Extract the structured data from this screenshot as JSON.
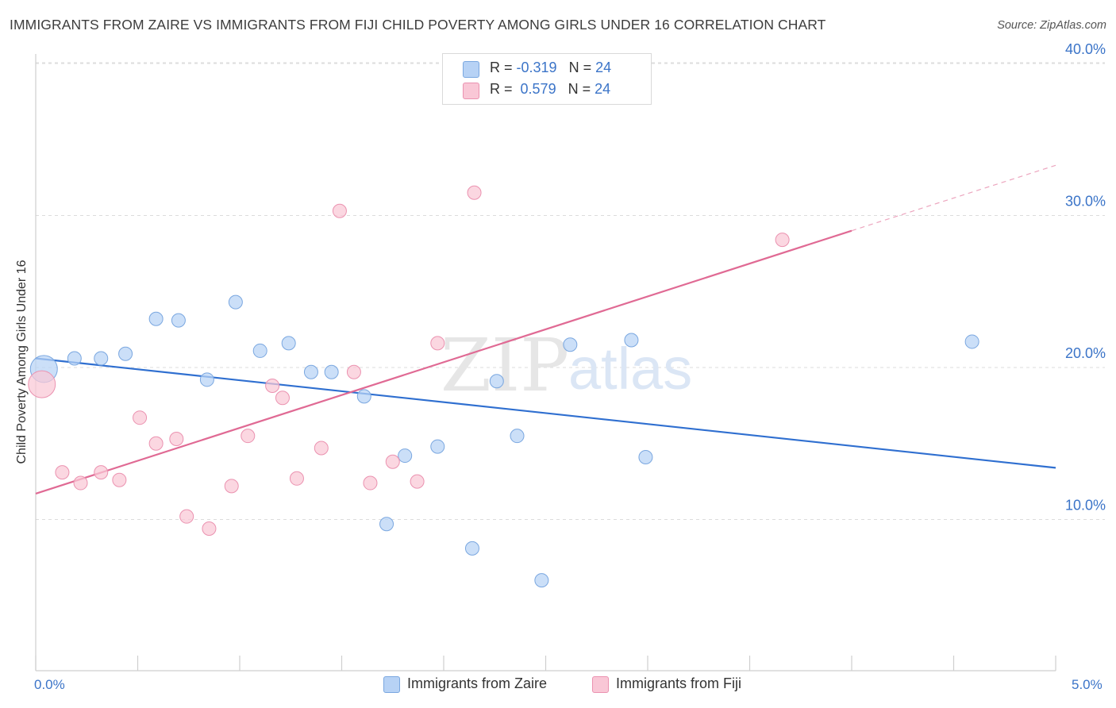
{
  "title": "IMMIGRANTS FROM ZAIRE VS IMMIGRANTS FROM FIJI CHILD POVERTY AMONG GIRLS UNDER 16 CORRELATION CHART",
  "source": "Source: ZipAtlas.com",
  "watermark": {
    "zip": "ZIP",
    "atlas": "atlas"
  },
  "legend_top": {
    "zaire": {
      "r_label": "R =",
      "r_value": "-0.319",
      "n_label": "N =",
      "n_value": "24"
    },
    "fiji": {
      "r_label": "R =",
      "r_value": "0.579",
      "n_label": "N =",
      "n_value": "24"
    }
  },
  "legend_bottom": {
    "zaire": "Immigrants from Zaire",
    "fiji": "Immigrants from Fiji"
  },
  "colors": {
    "zaire_fill": "#b7d2f5",
    "zaire_stroke": "#7aa7e0",
    "zaire_line": "#2f6fd0",
    "fiji_fill": "#f9c7d6",
    "fiji_stroke": "#eb92b0",
    "fiji_line": "#e06a94",
    "tick_text": "#3b74c8",
    "grid": "#dcdcdc"
  },
  "chart_data": {
    "type": "scatter",
    "title": "IMMIGRANTS FROM ZAIRE VS IMMIGRANTS FROM FIJI CHILD POVERTY AMONG GIRLS UNDER 16 CORRELATION CHART",
    "xlabel": "",
    "ylabel": "Child Poverty Among Girls Under 16",
    "xlim": [
      0,
      5
    ],
    "ylim": [
      0,
      42
    ],
    "x_tick_labels": [
      "0.0%",
      "5.0%"
    ],
    "y_ticks": [
      10,
      20,
      30,
      40
    ],
    "y_tick_labels": [
      "10.0%",
      "20.0%",
      "30.0%",
      "40.0%"
    ],
    "grid": true,
    "legend_position": "top-center",
    "series": [
      {
        "name": "Immigrants from Zaire",
        "points": [
          {
            "x": 0.04,
            "y": 19.9,
            "big": true
          },
          {
            "x": 0.19,
            "y": 20.6
          },
          {
            "x": 0.32,
            "y": 20.6
          },
          {
            "x": 0.44,
            "y": 20.9
          },
          {
            "x": 0.59,
            "y": 23.2
          },
          {
            "x": 0.7,
            "y": 23.1
          },
          {
            "x": 0.84,
            "y": 19.2
          },
          {
            "x": 0.98,
            "y": 24.3
          },
          {
            "x": 1.1,
            "y": 21.1
          },
          {
            "x": 1.24,
            "y": 21.6
          },
          {
            "x": 1.35,
            "y": 19.7
          },
          {
            "x": 1.45,
            "y": 19.7
          },
          {
            "x": 1.61,
            "y": 18.1
          },
          {
            "x": 1.72,
            "y": 9.7
          },
          {
            "x": 1.81,
            "y": 14.2
          },
          {
            "x": 1.97,
            "y": 14.8
          },
          {
            "x": 2.14,
            "y": 8.1
          },
          {
            "x": 2.26,
            "y": 19.1
          },
          {
            "x": 2.36,
            "y": 15.5
          },
          {
            "x": 2.48,
            "y": 6.0
          },
          {
            "x": 2.62,
            "y": 21.5
          },
          {
            "x": 2.92,
            "y": 21.8
          },
          {
            "x": 2.99,
            "y": 14.1
          },
          {
            "x": 4.59,
            "y": 21.7
          }
        ],
        "trend": {
          "x0": 0,
          "y0": 20.6,
          "x1": 5,
          "y1": 13.4
        }
      },
      {
        "name": "Immigrants from Fiji",
        "points": [
          {
            "x": 0.03,
            "y": 18.9,
            "big": true
          },
          {
            "x": 0.13,
            "y": 13.1
          },
          {
            "x": 0.22,
            "y": 12.4
          },
          {
            "x": 0.32,
            "y": 13.1
          },
          {
            "x": 0.41,
            "y": 12.6
          },
          {
            "x": 0.51,
            "y": 16.7
          },
          {
            "x": 0.59,
            "y": 15.0
          },
          {
            "x": 0.69,
            "y": 15.3
          },
          {
            "x": 0.74,
            "y": 10.2
          },
          {
            "x": 0.85,
            "y": 9.4
          },
          {
            "x": 0.96,
            "y": 12.2
          },
          {
            "x": 1.04,
            "y": 15.5
          },
          {
            "x": 1.16,
            "y": 18.8
          },
          {
            "x": 1.21,
            "y": 18.0
          },
          {
            "x": 1.28,
            "y": 12.7
          },
          {
            "x": 1.4,
            "y": 14.7
          },
          {
            "x": 1.49,
            "y": 30.3
          },
          {
            "x": 1.56,
            "y": 19.7
          },
          {
            "x": 1.64,
            "y": 12.4
          },
          {
            "x": 1.75,
            "y": 13.8
          },
          {
            "x": 1.87,
            "y": 12.5
          },
          {
            "x": 1.97,
            "y": 21.6
          },
          {
            "x": 2.15,
            "y": 31.5
          },
          {
            "x": 3.66,
            "y": 28.4
          }
        ],
        "trend": {
          "x0": 0,
          "y0": 11.7,
          "x1": 4.0,
          "y1": 29.0,
          "dash_to_x": 5,
          "dash_to_y": 33.3
        }
      }
    ]
  }
}
